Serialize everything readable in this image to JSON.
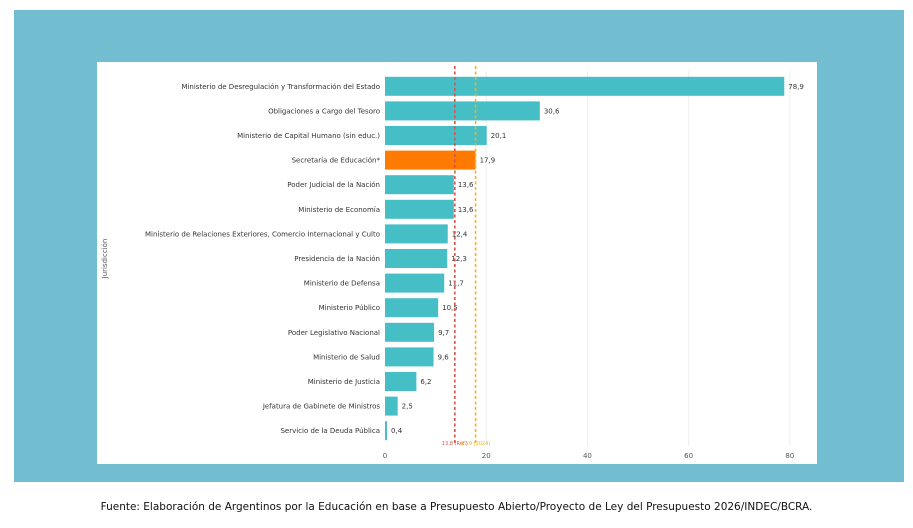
{
  "colors": {
    "frame": "#73bdd0",
    "bar": "#45bec6",
    "highlight": "#ff7a00",
    "line_red": "#d9534f",
    "line_orange": "#f3b21f",
    "text": "#333333"
  },
  "chart_data": {
    "type": "bar",
    "orientation": "horizontal",
    "ylabel": "Jurisdicción",
    "xlim": [
      0,
      83
    ],
    "xticks": [
      0,
      20,
      40,
      60,
      80
    ],
    "categories": [
      "Ministerio de Desregulación y Transformación del Estado",
      "Obligaciones a Cargo del Tesoro",
      "Ministerio de Capital Humano (sin educ.)",
      "Secretaría de Educación*",
      "Poder Judicial de la Nación",
      "Ministerio de Economía",
      "Ministerio de Relaciones Exteriores, Comercio Internacional y Culto",
      "Presidencia de la Nación",
      "Ministerio de Defensa",
      "Ministerio Público",
      "Poder Legislativo Nacional",
      "Ministerio de Salud",
      "Ministerio de Justicia",
      "Jefatura de Gabinete de Ministros",
      "Servicio de la Deuda Pública"
    ],
    "values": [
      78.9,
      30.6,
      20.1,
      17.9,
      13.6,
      13.6,
      12.4,
      12.3,
      11.7,
      10.5,
      9.7,
      9.6,
      6.2,
      2.5,
      0.4
    ],
    "value_labels": [
      "78,9",
      "30,6",
      "20,1",
      "17,9",
      "13,6",
      "13,6",
      "12,4",
      "12,3",
      "11,7",
      "10,5",
      "9,7",
      "9,6",
      "6,2",
      "2,5",
      "0,4"
    ],
    "highlight_index": 3,
    "reference_lines": [
      {
        "value": 13.8,
        "label": "13,8 (Ref.)",
        "color": "#d9534f"
      },
      {
        "value": 17.9,
        "label": "17,9 (2024)",
        "color": "#f3b21f"
      }
    ]
  },
  "source_text": "Fuente: Elaboración de Argentinos por la Educación en base a Presupuesto Abierto/Proyecto de Ley del Presupuesto 2026/INDEC/BCRA."
}
